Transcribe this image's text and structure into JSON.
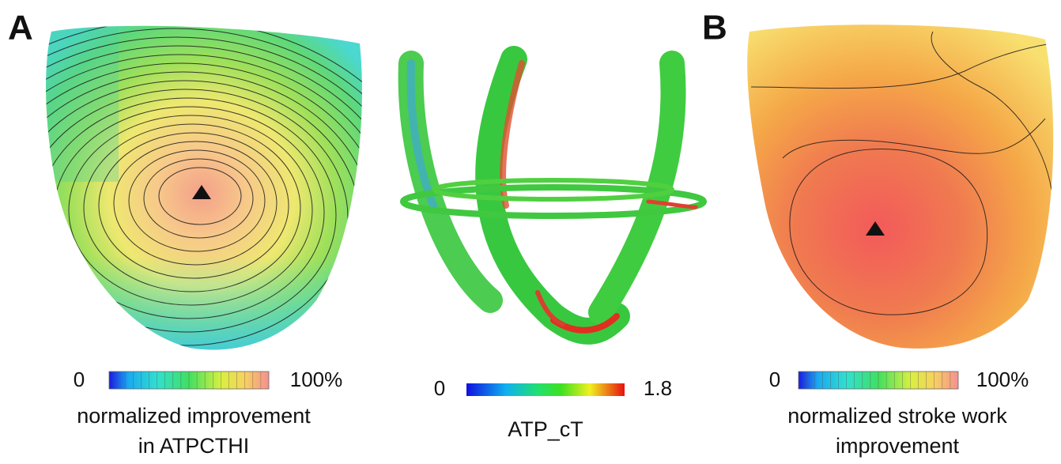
{
  "panels": [
    {
      "label": "A",
      "colorbar": {
        "min": "0",
        "max": "100%"
      },
      "caption": [
        "normalized improvement",
        "in ATPCTHI"
      ]
    },
    {
      "colorbar": {
        "min": "0",
        "max": "1.8"
      },
      "caption": [
        "ATP_cT"
      ]
    },
    {
      "label": "B",
      "colorbar": {
        "min": "0",
        "max": "100%"
      },
      "caption": [
        "normalized stroke work",
        "improvement"
      ]
    }
  ]
}
